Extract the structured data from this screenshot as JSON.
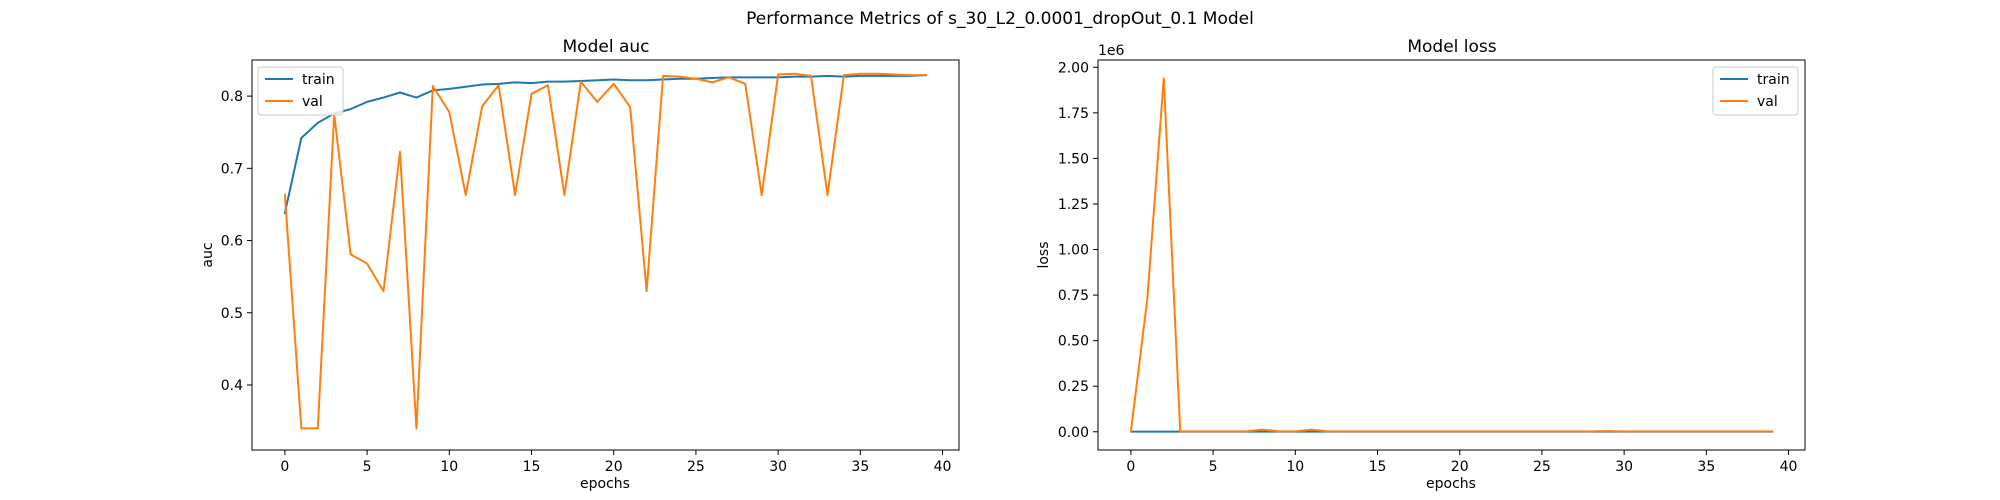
{
  "figure": {
    "suptitle": "Performance Metrics of s_30_L2_0.0001_dropOut_0.1 Model",
    "colors": {
      "train": "#1f77b4",
      "val": "#ff7f0e"
    }
  },
  "chart_data": [
    {
      "type": "line",
      "title": "Model auc",
      "xlabel": "epochs",
      "ylabel": "auc",
      "offset_text": "",
      "xlim": [
        -2,
        41
      ],
      "ylim": [
        0.31,
        0.85
      ],
      "xticks": [
        0,
        5,
        10,
        15,
        20,
        25,
        30,
        35,
        40
      ],
      "xtick_labels": [
        "0",
        "5",
        "10",
        "15",
        "20",
        "25",
        "30",
        "35",
        "40"
      ],
      "yticks": [
        0.4,
        0.5,
        0.6,
        0.7,
        0.8
      ],
      "ytick_labels": [
        "0.4",
        "0.5",
        "0.6",
        "0.7",
        "0.8"
      ],
      "legend": "upper left",
      "grid": false,
      "series": [
        {
          "name": "train",
          "color": "#1f77b4",
          "x": [
            0,
            1,
            2,
            3,
            4,
            5,
            6,
            7,
            8,
            9,
            10,
            11,
            12,
            13,
            14,
            15,
            16,
            17,
            18,
            19,
            20,
            21,
            22,
            23,
            24,
            25,
            26,
            27,
            28,
            29,
            30,
            31,
            32,
            33,
            34,
            35,
            36,
            37,
            38,
            39
          ],
          "y": [
            0.638,
            0.742,
            0.763,
            0.776,
            0.782,
            0.792,
            0.798,
            0.805,
            0.798,
            0.808,
            0.81,
            0.813,
            0.816,
            0.817,
            0.819,
            0.818,
            0.82,
            0.82,
            0.821,
            0.822,
            0.823,
            0.822,
            0.822,
            0.823,
            0.824,
            0.824,
            0.825,
            0.826,
            0.826,
            0.826,
            0.826,
            0.827,
            0.827,
            0.828,
            0.827,
            0.828,
            0.828,
            0.828,
            0.828,
            0.829
          ]
        },
        {
          "name": "val",
          "color": "#ff7f0e",
          "x": [
            0,
            1,
            2,
            3,
            4,
            5,
            6,
            7,
            8,
            9,
            10,
            11,
            12,
            13,
            14,
            15,
            16,
            17,
            18,
            19,
            20,
            21,
            22,
            23,
            24,
            25,
            26,
            27,
            28,
            29,
            30,
            31,
            32,
            33,
            34,
            35,
            36,
            37,
            38,
            39
          ],
          "y": [
            0.663,
            0.34,
            0.34,
            0.775,
            0.581,
            0.568,
            0.53,
            0.723,
            0.34,
            0.814,
            0.778,
            0.663,
            0.786,
            0.815,
            0.663,
            0.803,
            0.815,
            0.663,
            0.82,
            0.792,
            0.817,
            0.785,
            0.53,
            0.828,
            0.827,
            0.824,
            0.819,
            0.826,
            0.817,
            0.663,
            0.83,
            0.831,
            0.828,
            0.663,
            0.829,
            0.831,
            0.831,
            0.83,
            0.829,
            0.829
          ]
        }
      ]
    },
    {
      "type": "line",
      "title": "Model loss",
      "xlabel": "epochs",
      "ylabel": "loss",
      "offset_text": "1e6",
      "xlim": [
        -2,
        41
      ],
      "ylim": [
        -0.1,
        2.04
      ],
      "xticks": [
        0,
        5,
        10,
        15,
        20,
        25,
        30,
        35,
        40
      ],
      "xtick_labels": [
        "0",
        "5",
        "10",
        "15",
        "20",
        "25",
        "30",
        "35",
        "40"
      ],
      "yticks": [
        0.0,
        0.25,
        0.5,
        0.75,
        1.0,
        1.25,
        1.5,
        1.75,
        2.0
      ],
      "ytick_labels": [
        "0.00",
        "0.25",
        "0.50",
        "0.75",
        "1.00",
        "1.25",
        "1.50",
        "1.75",
        "2.00"
      ],
      "legend": "upper right",
      "grid": false,
      "series": [
        {
          "name": "train",
          "color": "#1f77b4",
          "x": [
            0,
            1,
            2,
            3,
            4,
            5,
            6,
            7,
            8,
            9,
            10,
            11,
            12,
            13,
            14,
            15,
            16,
            17,
            18,
            19,
            20,
            21,
            22,
            23,
            24,
            25,
            26,
            27,
            28,
            29,
            30,
            31,
            32,
            33,
            34,
            35,
            36,
            37,
            38,
            39
          ],
          "y": [
            0.001,
            0.001,
            0.001,
            0.001,
            0.001,
            0.001,
            0.001,
            0.001,
            0.001,
            0.001,
            0.001,
            0.001,
            0.001,
            0.001,
            0.001,
            0.001,
            0.001,
            0.001,
            0.001,
            0.001,
            0.001,
            0.001,
            0.001,
            0.001,
            0.001,
            0.001,
            0.001,
            0.001,
            0.001,
            0.001,
            0.001,
            0.001,
            0.001,
            0.001,
            0.001,
            0.001,
            0.001,
            0.001,
            0.001,
            0.001
          ]
        },
        {
          "name": "val",
          "color": "#ff7f0e",
          "x": [
            0,
            1,
            2,
            3,
            4,
            5,
            6,
            7,
            8,
            9,
            10,
            11,
            12,
            13,
            14,
            15,
            16,
            17,
            18,
            19,
            20,
            21,
            22,
            23,
            24,
            25,
            26,
            27,
            28,
            29,
            30,
            31,
            32,
            33,
            34,
            35,
            36,
            37,
            38,
            39
          ],
          "y": [
            0.001,
            0.73,
            1.94,
            0.002,
            0.002,
            0.002,
            0.002,
            0.002,
            0.012,
            0.002,
            0.002,
            0.012,
            0.002,
            0.002,
            0.002,
            0.002,
            0.002,
            0.002,
            0.002,
            0.002,
            0.002,
            0.002,
            0.002,
            0.002,
            0.002,
            0.002,
            0.002,
            0.002,
            0.002,
            0.004,
            0.002,
            0.002,
            0.002,
            0.002,
            0.002,
            0.002,
            0.002,
            0.002,
            0.002,
            0.002
          ]
        }
      ]
    }
  ]
}
